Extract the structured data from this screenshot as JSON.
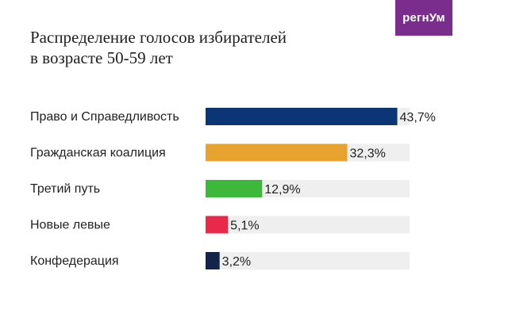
{
  "brand": {
    "logo_text": "регнУм",
    "color": "#7b2d8e"
  },
  "chart_data": {
    "type": "bar",
    "orientation": "horizontal",
    "title_lines": [
      "Распределение голосов избирателей",
      "в возрасте 50-59 лет"
    ],
    "categories": [
      "Право и Справедливость",
      "Гражданская коалиция",
      "Третий путь",
      "Новые левые",
      "Конфедерация"
    ],
    "values": [
      43.7,
      32.3,
      12.9,
      5.1,
      3.2
    ],
    "value_labels": [
      "43,7%",
      "32,3%",
      "12,9%",
      "5,1%",
      "3,2%"
    ],
    "colors": [
      "#0b3575",
      "#e8a22f",
      "#3db83a",
      "#e8294b",
      "#13234a"
    ],
    "track_color": "#efefef",
    "xlim": [
      0,
      46.5
    ],
    "grid": false,
    "legend": "none"
  }
}
